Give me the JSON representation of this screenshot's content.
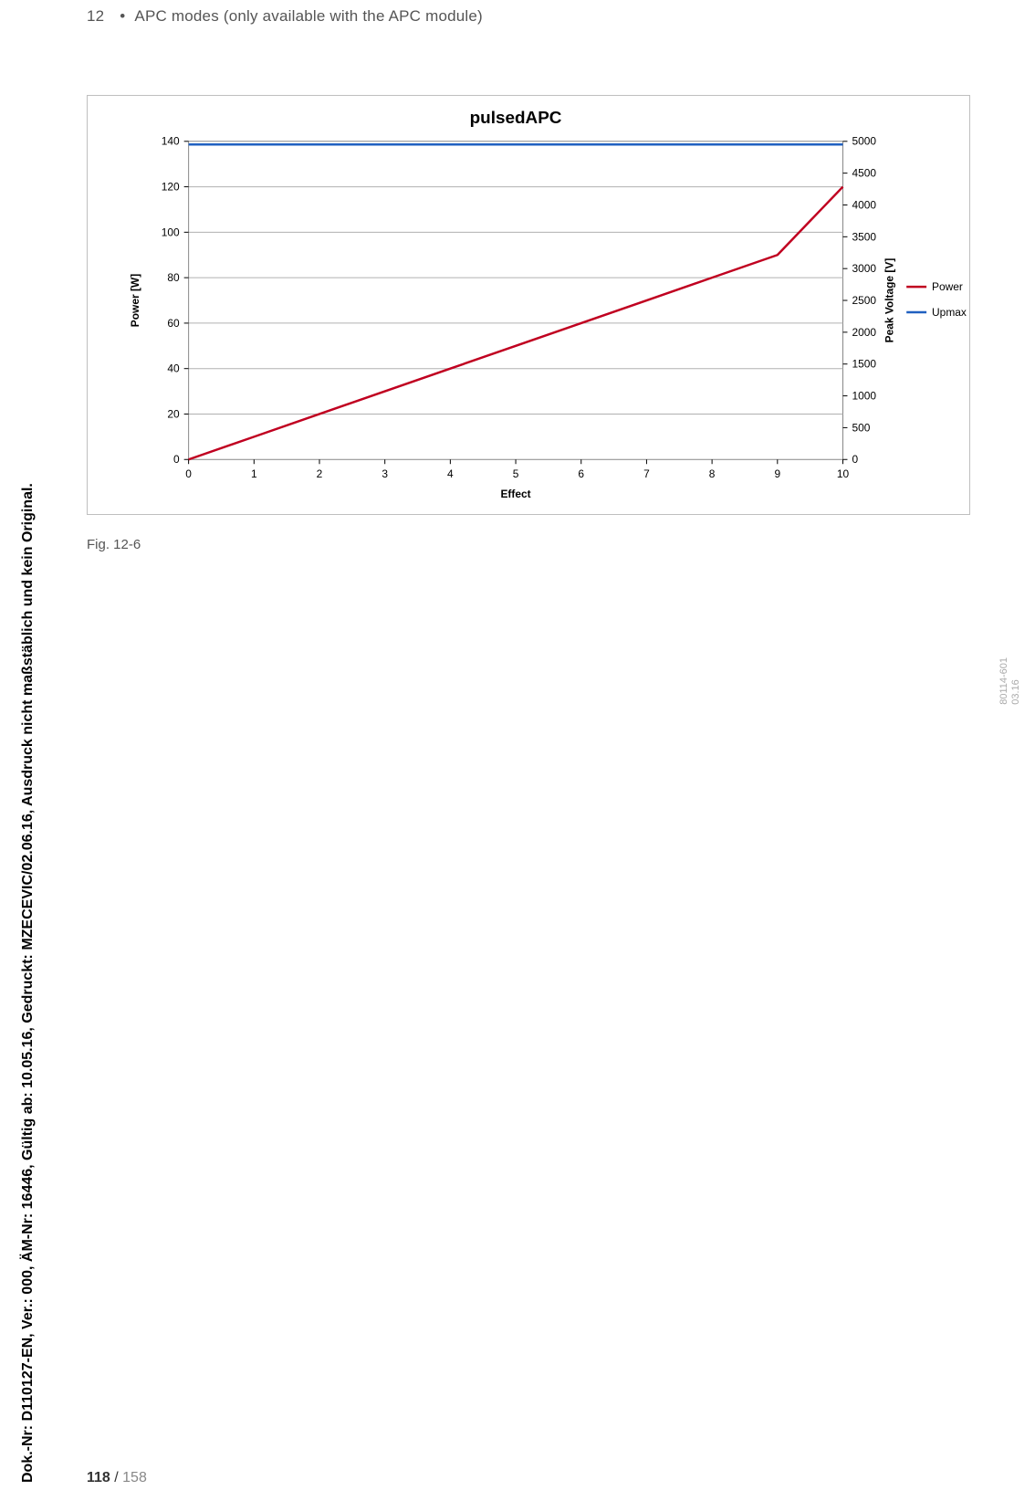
{
  "header": {
    "chapter_num": "12",
    "bullet": "•",
    "title": "APC modes (only available with the APC module)"
  },
  "figure_caption": "Fig. 12-6",
  "side_code": {
    "line1": "80114-601",
    "line2": "03.16"
  },
  "vertical_note": "Dok.-Nr: D110127-EN, Ver.: 000, ÄM-Nr: 16446, Gültig ab: 10.05.16, Gedruckt: MZECEVIC/02.06.16, Ausdruck nicht maßstäblich und kein Original.",
  "page_number": {
    "current": "118",
    "sep": " / ",
    "total": "158"
  },
  "chart": {
    "type": "line-dual-y",
    "title": "pulsedAPC",
    "title_fontsize": 19,
    "title_fontweight": "bold",
    "background_color": "#ffffff",
    "plot_border_color": "#888888",
    "grid_color": "#b0b0b0",
    "grid_lines": "horizontal",
    "tick_fontsize": 12,
    "axis_label_fontsize": 12,
    "axis_label_fontweight": "bold",
    "x_axis": {
      "label": "Effect",
      "min": 0,
      "max": 10,
      "ticks": [
        0,
        1,
        2,
        3,
        4,
        5,
        6,
        7,
        8,
        9,
        10
      ]
    },
    "y_left": {
      "label": "Power [W]",
      "min": 0,
      "max": 140,
      "ticks": [
        0,
        20,
        40,
        60,
        80,
        100,
        120,
        140
      ]
    },
    "y_right": {
      "label": "Peak Voltage [V]",
      "min": 0,
      "max": 5000,
      "ticks": [
        0,
        500,
        1000,
        1500,
        2000,
        2500,
        3000,
        3500,
        4000,
        4500,
        5000
      ]
    },
    "legend": {
      "position": "right",
      "fontsize": 12,
      "items": [
        {
          "label": "Power",
          "color": "#c00020"
        },
        {
          "label": "Upmax",
          "color": "#2060c0"
        }
      ]
    },
    "series": [
      {
        "name": "Power",
        "axis": "left",
        "color": "#c00020",
        "line_width": 2.5,
        "x": [
          0,
          1,
          2,
          3,
          4,
          5,
          6,
          7,
          8,
          9,
          10
        ],
        "y": [
          0,
          10,
          20,
          30,
          40,
          50,
          60,
          70,
          80,
          90,
          120
        ]
      },
      {
        "name": "Upmax",
        "axis": "right",
        "color": "#2060c0",
        "line_width": 2.5,
        "x": [
          0,
          1,
          2,
          3,
          4,
          5,
          6,
          7,
          8,
          9,
          10
        ],
        "y": [
          4950,
          4950,
          4950,
          4950,
          4950,
          4950,
          4950,
          4950,
          4950,
          4950,
          4950
        ]
      }
    ]
  }
}
